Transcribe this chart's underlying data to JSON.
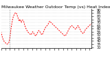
{
  "title": "Milwaukee Weather Outdoor Temp (vs) Heat Index per Minute (Last 24 Hours)",
  "background_color": "#ffffff",
  "line_color": "#ff0000",
  "grid_color": "#aaaaaa",
  "ylim": [
    28,
    92
  ],
  "yticks": [
    30,
    35,
    40,
    45,
    50,
    55,
    60,
    65,
    70,
    75,
    80,
    85,
    90
  ],
  "y_values": [
    55,
    50,
    46,
    43,
    41,
    39,
    38,
    37,
    36,
    35,
    35,
    36,
    37,
    40,
    46,
    54,
    62,
    68,
    74,
    78,
    81,
    83,
    85,
    86,
    85,
    83,
    80,
    77,
    74,
    72,
    75,
    73,
    70,
    72,
    74,
    73,
    71,
    67,
    64,
    61,
    59,
    57,
    55,
    54,
    53,
    52,
    51,
    50,
    51,
    53,
    55,
    54,
    52,
    50,
    49,
    48,
    50,
    52,
    54,
    56,
    57,
    56,
    54,
    52,
    51,
    50,
    52,
    54,
    57,
    59,
    61,
    63,
    64,
    65,
    66,
    68,
    70,
    72,
    71,
    70,
    69,
    68,
    67,
    66,
    65,
    64,
    63,
    62,
    61,
    60,
    59,
    58,
    57,
    56,
    55,
    54,
    53,
    52,
    51,
    50,
    49,
    48,
    49,
    50,
    52,
    54,
    56,
    58,
    60,
    62,
    63,
    64,
    65,
    64,
    63,
    62,
    61,
    60,
    59,
    60,
    62,
    64,
    65,
    63,
    61,
    59,
    57,
    55,
    54,
    53,
    52,
    53,
    55,
    57,
    59,
    60,
    61,
    62,
    63,
    64,
    65,
    66,
    67,
    68
  ],
  "vline_x": 13,
  "title_fontsize": 4.5,
  "tick_fontsize": 3.5,
  "line_width": 0.7,
  "dash_pattern": [
    2,
    1.5
  ]
}
